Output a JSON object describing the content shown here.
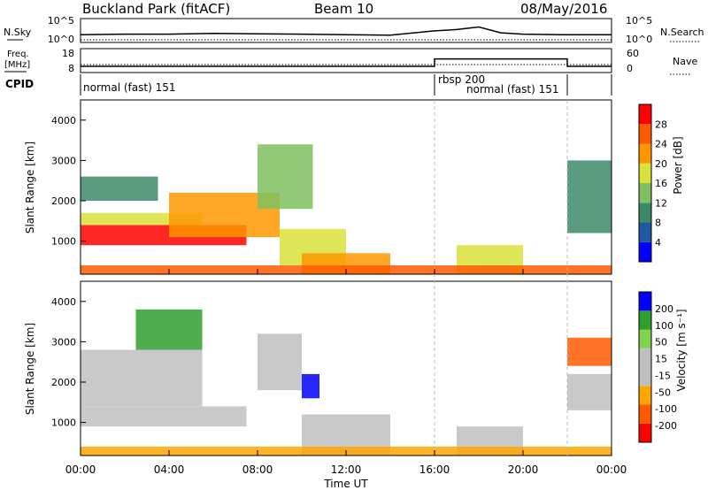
{
  "header": {
    "station": "Buckland Park (fitACF)",
    "beam": "Beam 10",
    "date": "08/May/2016"
  },
  "noise_panel": {
    "left_label": "N.Sky",
    "right_label": "N.Search",
    "y_ticks": [
      "10^5",
      "10^0"
    ]
  },
  "freq_panel": {
    "left_label_1": "Freq.",
    "left_label_2": "[MHz]",
    "right_label": "Nave",
    "left_ticks": [
      "18",
      "8"
    ],
    "right_ticks": [
      "60",
      "0"
    ]
  },
  "cpid_panel": {
    "label": "CPID",
    "segments": [
      "normal (fast) 151",
      "rbsp 200",
      "normal (fast) 151"
    ]
  },
  "power_panel": {
    "ylabel": "Slant Range [km]",
    "yticks": [
      "4000",
      "3000",
      "2000",
      "1000"
    ],
    "colorbar_label": "Power [dB]",
    "colorbar_ticks": [
      "28",
      "24",
      "20",
      "16",
      "12",
      "8",
      "4"
    ]
  },
  "velocity_panel": {
    "ylabel": "Slant Range [km]",
    "yticks": [
      "4000",
      "3000",
      "2000",
      "1000"
    ],
    "colorbar_label": "Velocity [m s⁻¹]",
    "colorbar_ticks": [
      "200",
      "100",
      "50",
      "15",
      "-15",
      "-50",
      "-100",
      "-200"
    ]
  },
  "xaxis": {
    "label": "Time UT",
    "ticks": [
      "00:00",
      "04:00",
      "08:00",
      "12:00",
      "16:00",
      "20:00",
      "00:00"
    ]
  },
  "colors": {
    "power_scale": [
      "#0000ff",
      "#1f5aa0",
      "#3d8a6a",
      "#7fbf5f",
      "#d8e23a",
      "#ff9800",
      "#ff5a00",
      "#ff0000"
    ],
    "velocity_scale": [
      "#ff0000",
      "#ff5a00",
      "#ffa500",
      "#bfbfbf",
      "#bfbfbf",
      "#7fd34f",
      "#2fa02f",
      "#0000ff"
    ]
  },
  "chart_data": [
    {
      "type": "line",
      "title": "N.Sky / N.Search noise",
      "x": [
        0,
        2,
        4,
        6,
        8,
        10,
        12,
        14,
        16,
        17,
        18,
        19,
        20,
        22,
        24
      ],
      "values": [
        0.35,
        0.38,
        0.38,
        0.42,
        0.4,
        0.38,
        0.35,
        0.33,
        0.55,
        0.62,
        0.75,
        0.45,
        0.38,
        0.35,
        0.35
      ],
      "xlabel": "Time UT (hours)"
    },
    {
      "type": "line",
      "title": "Freq / Nave",
      "series": [
        {
          "name": "Freq. [MHz]",
          "x": [
            0,
            16,
            16,
            22,
            22,
            24
          ],
          "values": [
            10.5,
            10.5,
            14,
            14,
            10.5,
            10.5
          ]
        }
      ],
      "ylim": [
        8,
        18
      ]
    },
    {
      "type": "heatmap",
      "ylabel": "Slant Range [km]",
      "xlabel": "Time UT",
      "xlim": [
        0,
        24
      ],
      "ylim": [
        180,
        4500
      ],
      "colorbar": "Power [dB]",
      "colorbar_range": [
        0,
        30
      ],
      "bands": [
        {
          "t0": 0.0,
          "t1": 7.5,
          "r0": 900,
          "r1": 1400,
          "value": 27
        },
        {
          "t0": 0.0,
          "t1": 5.5,
          "r0": 1400,
          "r1": 1700,
          "value": 18
        },
        {
          "t0": 0.0,
          "t1": 3.5,
          "r0": 2000,
          "r1": 2600,
          "value": 10
        },
        {
          "t0": 4.0,
          "t1": 9.0,
          "r0": 1100,
          "r1": 2200,
          "value": 20
        },
        {
          "t0": 8.0,
          "t1": 10.5,
          "r0": 1800,
          "r1": 3400,
          "value": 12
        },
        {
          "t0": 9.0,
          "t1": 12.0,
          "r0": 400,
          "r1": 1300,
          "value": 18
        },
        {
          "t0": 10.0,
          "t1": 14.0,
          "r0": 180,
          "r1": 700,
          "value": 22
        },
        {
          "t0": 17.0,
          "t1": 20.0,
          "r0": 180,
          "r1": 900,
          "value": 16
        },
        {
          "t0": 22.0,
          "t1": 24.0,
          "r0": 1200,
          "r1": 3000,
          "value": 10
        },
        {
          "t0": 0.0,
          "t1": 24.0,
          "r0": 180,
          "r1": 400,
          "value": 24
        }
      ]
    },
    {
      "type": "heatmap",
      "ylabel": "Slant Range [km]",
      "xlabel": "Time UT",
      "xlim": [
        0,
        24
      ],
      "ylim": [
        180,
        4500
      ],
      "colorbar": "Velocity [m s-1]",
      "colorbar_range": [
        -250,
        250
      ],
      "bands": [
        {
          "t0": 0.0,
          "t1": 7.5,
          "r0": 900,
          "r1": 1400,
          "value": 0
        },
        {
          "t0": 0.0,
          "t1": 5.5,
          "r0": 1400,
          "r1": 2800,
          "value": 5
        },
        {
          "t0": 2.5,
          "t1": 5.5,
          "r0": 2800,
          "r1": 3800,
          "value": 180
        },
        {
          "t0": 8.0,
          "t1": 10.0,
          "r0": 1800,
          "r1": 3200,
          "value": 60
        },
        {
          "t0": 10.0,
          "t1": 10.8,
          "r0": 1600,
          "r1": 2200,
          "value": 220
        },
        {
          "t0": 10.0,
          "t1": 14.0,
          "r0": 180,
          "r1": 1200,
          "value": 0
        },
        {
          "t0": 17.0,
          "t1": 20.0,
          "r0": 180,
          "r1": 900,
          "value": 0
        },
        {
          "t0": 22.0,
          "t1": 24.0,
          "r0": 1300,
          "r1": 2200,
          "value": 0
        },
        {
          "t0": 22.0,
          "t1": 24.0,
          "r0": 2400,
          "r1": 3100,
          "value": -150
        },
        {
          "t0": 0.0,
          "t1": 24.0,
          "r0": 180,
          "r1": 400,
          "value": -120
        }
      ]
    }
  ]
}
